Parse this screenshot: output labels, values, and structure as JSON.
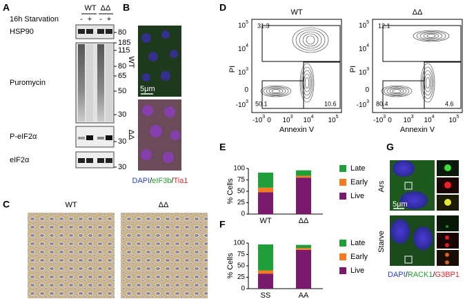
{
  "panels": {
    "A": {
      "label": "A",
      "groups": [
        "WT",
        "ΔΔ"
      ],
      "treatment": "16h Starvation",
      "lanes": [
        "-",
        "+",
        "-",
        "+"
      ],
      "blots": [
        {
          "name": "HSP90",
          "markers": [
            80
          ]
        },
        {
          "name": "Puromycin",
          "markers": [
            185,
            115,
            80,
            65,
            50,
            30
          ]
        },
        {
          "name": "P-eIF2α",
          "markers": [
            30
          ]
        },
        {
          "name": "eIF2α",
          "markers": [
            30
          ]
        }
      ]
    },
    "B": {
      "label": "B",
      "rows": [
        "WT",
        "ΔΔ"
      ],
      "scale": "5μm",
      "stain_legend": [
        {
          "text": "DAPI",
          "color": "#2a3fd0"
        },
        {
          "text": "/",
          "color": "#000000"
        },
        {
          "text": "eIF3b",
          "color": "#1e9e2e"
        },
        {
          "text": "/",
          "color": "#000000"
        },
        {
          "text": "Tia1",
          "color": "#d9262b"
        }
      ]
    },
    "C": {
      "label": "C",
      "columns": [
        "WT",
        "ΔΔ"
      ]
    },
    "D": {
      "label": "D",
      "x_label": "Annexin V",
      "y_label": "PI",
      "yticks": [
        {
          "base": "10",
          "exp": "5"
        },
        {
          "base": "10",
          "exp": "4"
        },
        {
          "base": "10",
          "exp": "3"
        },
        {
          "base": "0"
        },
        {
          "base": "-10",
          "exp": "3"
        }
      ],
      "xticks": [
        {
          "base": "-10",
          "exp": "3"
        },
        {
          "base": "0"
        },
        {
          "base": "10",
          "exp": "3"
        },
        {
          "base": "10",
          "exp": "4"
        },
        {
          "base": "10",
          "exp": "5"
        }
      ],
      "plots": [
        {
          "title": "WT",
          "upper": 31.3,
          "lower_left": 50.1,
          "lower_right": 10.6
        },
        {
          "title": "ΔΔ",
          "upper": 12.1,
          "lower_left": 80.4,
          "lower_right": 4.6
        }
      ]
    },
    "G": {
      "label": "G",
      "rows": [
        "Ars",
        "Starve"
      ],
      "scale": "5μm",
      "stain_legend": [
        {
          "text": "DAPI",
          "color": "#2a3fd0"
        },
        {
          "text": "/",
          "color": "#000000"
        },
        {
          "text": "RACK1",
          "color": "#1e9e2e"
        },
        {
          "text": "/",
          "color": "#000000"
        },
        {
          "text": "G3BP1",
          "color": "#d9262b"
        }
      ]
    }
  },
  "chart_data": [
    {
      "type": "stacked_bar",
      "label": "E",
      "ylabel": "% Cells",
      "categories": [
        "WT",
        "ΔΔ"
      ],
      "series": [
        {
          "name": "Live",
          "color": "#7a1a6c",
          "values": [
            48,
            80
          ]
        },
        {
          "name": "Early",
          "color": "#f47b20",
          "values": [
            10,
            4
          ]
        },
        {
          "name": "Late",
          "color": "#1f9e3a",
          "values": [
            33,
            12
          ]
        }
      ],
      "ylim": [
        0,
        100
      ],
      "yticks": [
        0,
        25,
        50,
        75,
        100
      ]
    },
    {
      "type": "stacked_bar",
      "label": "F",
      "ylabel": "% Cells",
      "categories": [
        "SS",
        "AA"
      ],
      "series": [
        {
          "name": "Live",
          "color": "#7a1a6c",
          "values": [
            33,
            85
          ]
        },
        {
          "name": "Early",
          "color": "#f47b20",
          "values": [
            7,
            4
          ]
        },
        {
          "name": "Late",
          "color": "#1f9e3a",
          "values": [
            57,
            7
          ]
        }
      ],
      "ylim": [
        0,
        100
      ],
      "yticks": [
        0,
        25,
        50,
        75,
        100
      ]
    }
  ]
}
